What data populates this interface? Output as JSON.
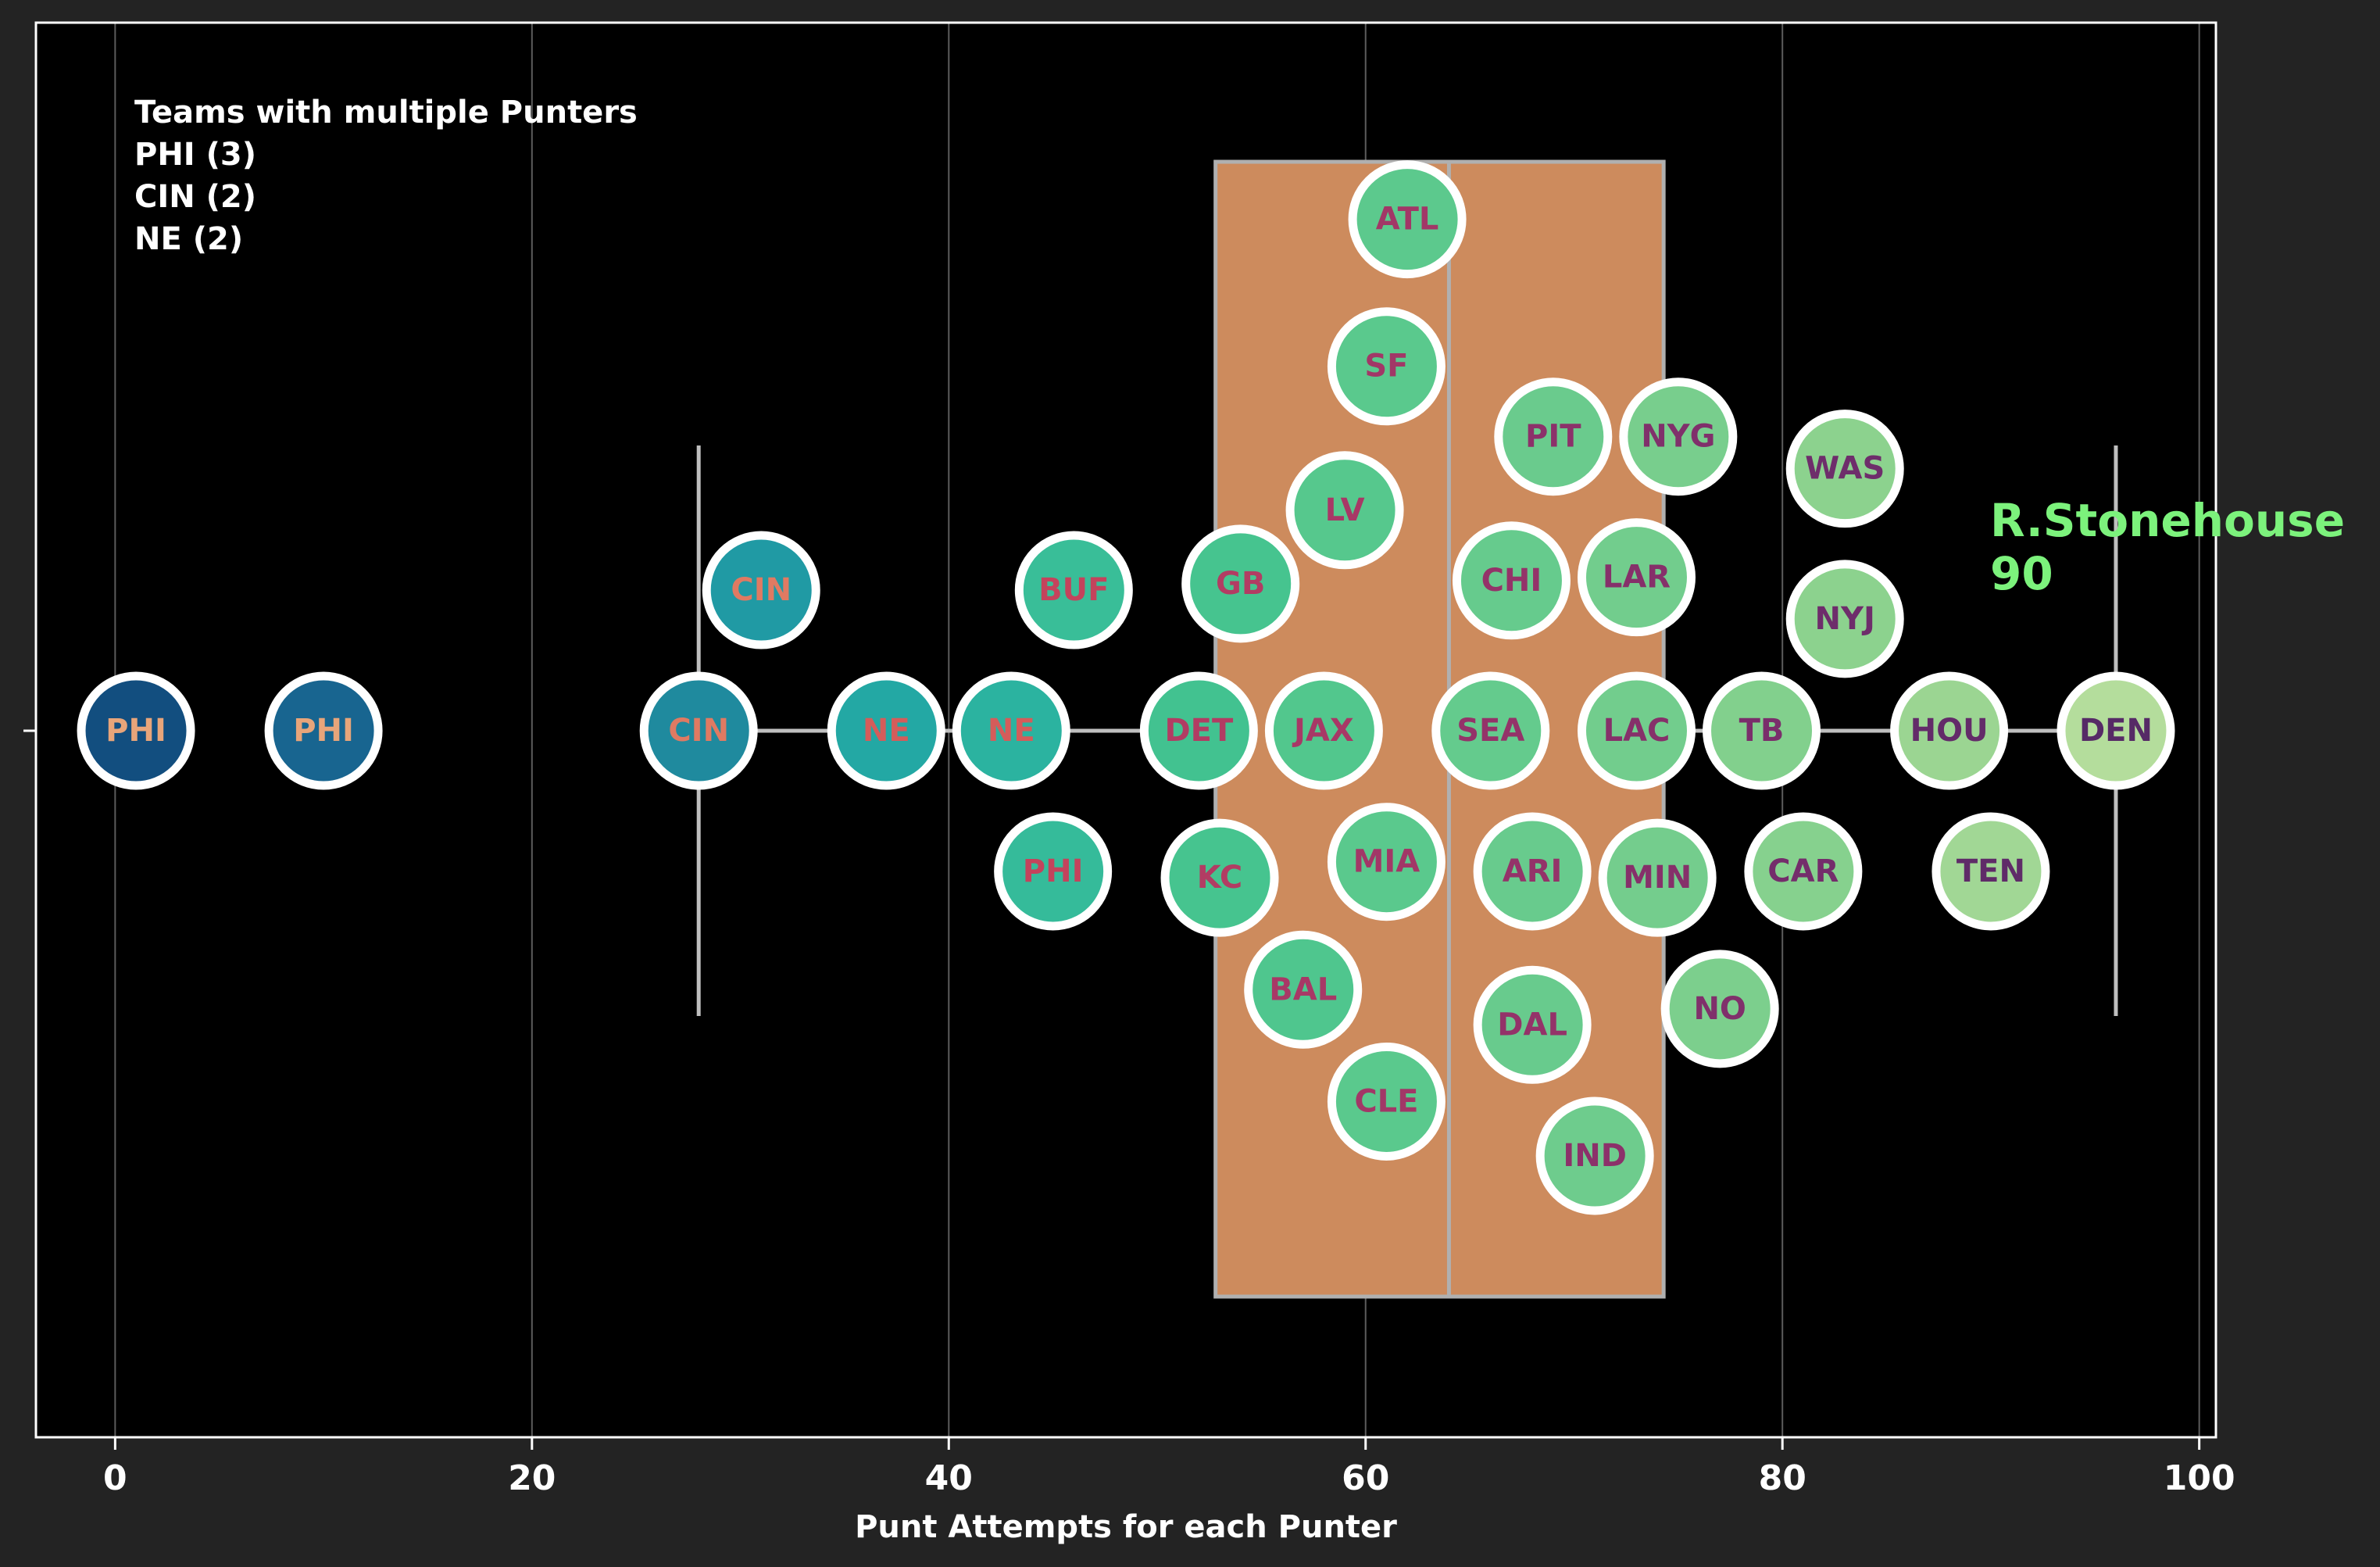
{
  "chart_data": {
    "type": "scatter",
    "xlabel": "Punt Attempts for each Punter",
    "xlim": [
      -3.8,
      100.8
    ],
    "xticks": [
      0,
      20,
      40,
      60,
      80,
      100
    ],
    "grid": "vertical",
    "legend": {
      "placement": "top-left",
      "lines": [
        "Teams with multiple Punters",
        "PHI (3)",
        "CIN (2)",
        "NE (2)"
      ]
    },
    "annotation": {
      "lines": [
        "R.Stonehouse",
        "90"
      ],
      "color": "#7cf27c"
    },
    "boxplot": {
      "whisker_low": 28,
      "q1": 52.8,
      "median": 64,
      "q3": 74.3,
      "whisker_high": 96,
      "color": "#cd8b5d"
    },
    "points": [
      {
        "team": "PHI",
        "x": 1,
        "y": 0,
        "fill": "#124e7f",
        "label_color": "#e8a57a"
      },
      {
        "team": "PHI",
        "x": 10,
        "y": 0,
        "fill": "#186590",
        "label_color": "#e8a57a"
      },
      {
        "team": "CIN",
        "x": 28,
        "y": 0,
        "fill": "#1f8a9e",
        "label_color": "#e07a62"
      },
      {
        "team": "CIN",
        "x": 31,
        "y": 0.44,
        "fill": "#209aa4",
        "label_color": "#e07a62"
      },
      {
        "team": "NE",
        "x": 37,
        "y": 0,
        "fill": "#23a8a4",
        "label_color": "#d55c5a"
      },
      {
        "team": "NE",
        "x": 43,
        "y": 0,
        "fill": "#2bb3a0",
        "label_color": "#d55c5a"
      },
      {
        "team": "BUF",
        "x": 46,
        "y": 0.44,
        "fill": "#39be98",
        "label_color": "#c4435c"
      },
      {
        "team": "PHI",
        "x": 45,
        "y": -0.44,
        "fill": "#35bb9a",
        "label_color": "#c4435c"
      },
      {
        "team": "DET",
        "x": 52,
        "y": 0,
        "fill": "#42c290",
        "label_color": "#b23c63"
      },
      {
        "team": "GB",
        "x": 54,
        "y": 0.46,
        "fill": "#46c48f",
        "label_color": "#b23c63"
      },
      {
        "team": "KC",
        "x": 53,
        "y": -0.46,
        "fill": "#46c48f",
        "label_color": "#b23c63"
      },
      {
        "team": "BAL",
        "x": 57,
        "y": -0.81,
        "fill": "#4fc68e",
        "label_color": "#a83866"
      },
      {
        "team": "JAX",
        "x": 58,
        "y": 0,
        "fill": "#52c78d",
        "label_color": "#a83866"
      },
      {
        "team": "LV",
        "x": 59,
        "y": 0.69,
        "fill": "#56c88d",
        "label_color": "#a83866"
      },
      {
        "team": "SF",
        "x": 61,
        "y": 1.14,
        "fill": "#5ac98d",
        "label_color": "#a23767"
      },
      {
        "team": "MIA",
        "x": 61,
        "y": -0.41,
        "fill": "#5ac98d",
        "label_color": "#a23767"
      },
      {
        "team": "CLE",
        "x": 61,
        "y": -1.16,
        "fill": "#5ac98d",
        "label_color": "#a23767"
      },
      {
        "team": "ATL",
        "x": 62,
        "y": 1.6,
        "fill": "#5cc98d",
        "label_color": "#a23767"
      },
      {
        "team": "SEA",
        "x": 66,
        "y": 0,
        "fill": "#64cb8d",
        "label_color": "#943369"
      },
      {
        "team": "CHI",
        "x": 67,
        "y": 0.47,
        "fill": "#66cb8d",
        "label_color": "#943369"
      },
      {
        "team": "ARI",
        "x": 68,
        "y": -0.44,
        "fill": "#68cb8d",
        "label_color": "#943369"
      },
      {
        "team": "DAL",
        "x": 68,
        "y": -0.92,
        "fill": "#68cb8d",
        "label_color": "#943369"
      },
      {
        "team": "PIT",
        "x": 69,
        "y": 0.92,
        "fill": "#6acb8d",
        "label_color": "#8c316a"
      },
      {
        "team": "IND",
        "x": 71,
        "y": -1.33,
        "fill": "#6ecc8d",
        "label_color": "#8c316a"
      },
      {
        "team": "LAR",
        "x": 73,
        "y": 0.48,
        "fill": "#72cd8d",
        "label_color": "#86306a"
      },
      {
        "team": "LAC",
        "x": 73,
        "y": 0,
        "fill": "#72cd8d",
        "label_color": "#86306a"
      },
      {
        "team": "MIN",
        "x": 74,
        "y": -0.46,
        "fill": "#74cd8d",
        "label_color": "#86306a"
      },
      {
        "team": "NYG",
        "x": 75,
        "y": 0.92,
        "fill": "#78ce8d",
        "label_color": "#80306b"
      },
      {
        "team": "NO",
        "x": 77,
        "y": -0.87,
        "fill": "#7ccf8d",
        "label_color": "#80306b"
      },
      {
        "team": "TB",
        "x": 79,
        "y": 0,
        "fill": "#82d08d",
        "label_color": "#7a2e6b"
      },
      {
        "team": "CAR",
        "x": 81,
        "y": -0.44,
        "fill": "#86d18e",
        "label_color": "#742d6b"
      },
      {
        "team": "WAS",
        "x": 83,
        "y": 0.82,
        "fill": "#8cd28e",
        "label_color": "#6e2d6b"
      },
      {
        "team": "NYJ",
        "x": 83,
        "y": 0.35,
        "fill": "#8cd28e",
        "label_color": "#6e2d6b"
      },
      {
        "team": "HOU",
        "x": 88,
        "y": 0,
        "fill": "#9bd592",
        "label_color": "#632b69"
      },
      {
        "team": "TEN",
        "x": 90,
        "y": -0.44,
        "fill": "#a1d795",
        "label_color": "#5f2b68"
      },
      {
        "team": "DEN",
        "x": 96,
        "y": 0,
        "fill": "#b4dd9c",
        "label_color": "#562a66"
      }
    ]
  }
}
